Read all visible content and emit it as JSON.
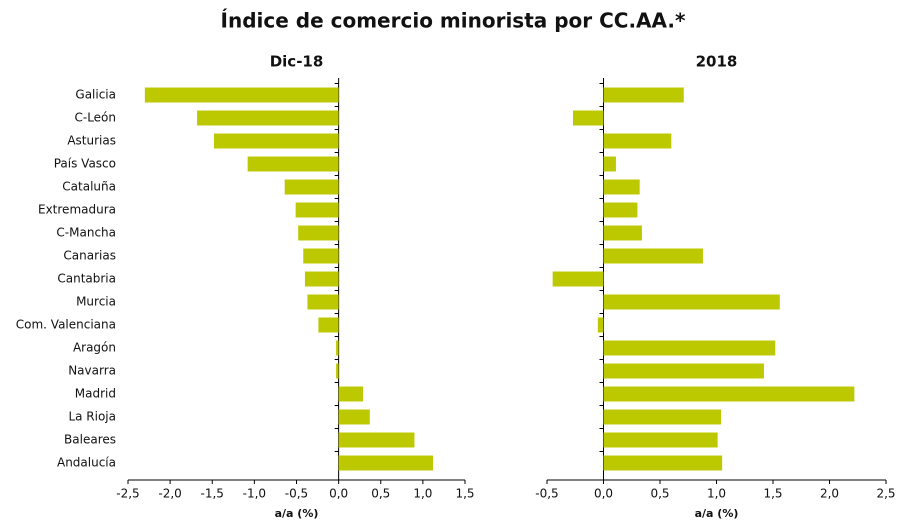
{
  "title": "Índice de comercio minorista por CC.AA.*",
  "chart_data": [
    {
      "type": "hbar",
      "title": "Dic-18",
      "xlabel": "a/a (%)",
      "color": "#bcc800",
      "categories": [
        "Galicia",
        "C-León",
        "Asturias",
        "País Vasco",
        "Cataluña",
        "Extremadura",
        "C-Mancha",
        "Canarias",
        "Cantabria",
        "Murcia",
        "Com. Valenciana",
        "Aragón",
        "Navarra",
        "Madrid",
        "La Rioja",
        "Baleares",
        "Andalucía"
      ],
      "values": [
        -2.3,
        -1.68,
        -1.48,
        -1.08,
        -0.64,
        -0.51,
        -0.48,
        -0.42,
        -0.4,
        -0.37,
        -0.24,
        -0.03,
        -0.03,
        0.29,
        0.37,
        0.9,
        1.12
      ],
      "xlim": [
        -2.5,
        1.5
      ],
      "xticks": [
        {
          "value": -2.5,
          "label": "-2,5"
        },
        {
          "value": -2,
          "label": "-2,0"
        },
        {
          "value": -1.5,
          "label": "-1,5"
        },
        {
          "value": -1,
          "label": "-1,0"
        },
        {
          "value": -0.5,
          "label": "-0,5"
        },
        {
          "value": 0,
          "label": "0,0"
        },
        {
          "value": 0.5,
          "label": "0,5"
        },
        {
          "value": 1,
          "label": "1,0"
        },
        {
          "value": 1.5,
          "label": "1,5"
        }
      ]
    },
    {
      "type": "hbar",
      "title": "2018",
      "xlabel": "a/a (%)",
      "color": "#bcc800",
      "values": [
        0.71,
        -0.27,
        0.6,
        0.11,
        0.32,
        0.3,
        0.34,
        0.88,
        -0.45,
        1.56,
        -0.05,
        1.52,
        1.42,
        2.22,
        1.04,
        1.01,
        1.05
      ],
      "xlim": [
        -0.5,
        2.5
      ],
      "xticks": [
        {
          "value": -0.5,
          "label": "-0,5"
        },
        {
          "value": 0,
          "label": "0,0"
        },
        {
          "value": 0.5,
          "label": "0,5"
        },
        {
          "value": 1,
          "label": "1,0"
        },
        {
          "value": 1.5,
          "label": "1,5"
        },
        {
          "value": 2,
          "label": "2,0"
        },
        {
          "value": 2.5,
          "label": "2,5"
        }
      ]
    }
  ]
}
